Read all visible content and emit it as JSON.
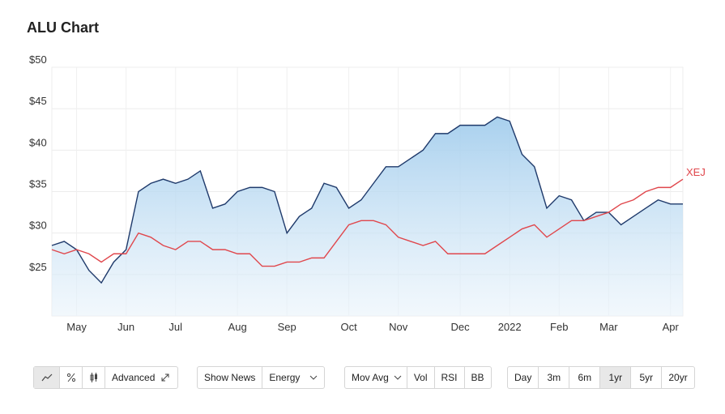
{
  "chart_data": {
    "type": "line",
    "title": "ALU Chart",
    "categories": [
      null,
      null,
      "May",
      null,
      null,
      null,
      "Jun",
      null,
      null,
      null,
      "Jul",
      null,
      null,
      null,
      null,
      "Aug",
      null,
      null,
      null,
      "Sep",
      null,
      null,
      null,
      null,
      "Oct",
      null,
      null,
      null,
      "Nov",
      null,
      null,
      null,
      null,
      "Dec",
      null,
      null,
      null,
      "2022",
      null,
      null,
      null,
      "Feb",
      null,
      null,
      null,
      "Mar",
      null,
      null,
      null,
      null,
      "Apr",
      null
    ],
    "series": [
      {
        "color": "#1f3a6b",
        "area": true,
        "values": [
          28.5,
          29,
          28,
          25.5,
          24,
          26.5,
          28,
          35,
          36,
          36.5,
          36,
          36.5,
          37.5,
          33,
          33.5,
          35,
          35.5,
          35.5,
          35,
          30,
          32,
          33,
          36,
          35.5,
          33,
          34,
          36,
          38,
          38,
          39,
          40,
          42,
          42,
          43,
          43,
          43,
          44,
          43.5,
          39.5,
          38,
          33,
          34.5,
          34,
          31.5,
          32.5,
          32.5,
          31,
          32,
          33,
          34,
          33.5,
          33.5
        ]
      },
      {
        "name": "XEJ",
        "color": "#e0474c",
        "values": [
          28,
          27.5,
          28,
          27.5,
          26.5,
          27.5,
          27.5,
          30,
          29.5,
          28.5,
          28,
          29,
          29,
          28,
          28,
          27.5,
          27.5,
          26,
          26,
          26.5,
          26.5,
          27,
          27,
          29,
          31,
          31.5,
          31.5,
          31,
          29.5,
          29,
          28.5,
          29,
          27.5,
          27.5,
          27.5,
          27.5,
          28.5,
          29.5,
          30.5,
          31,
          29.5,
          30.5,
          31.5,
          31.5,
          32,
          32.5,
          33.5,
          34,
          35,
          35.5,
          35.5,
          36.5
        ]
      }
    ],
    "ylim": [
      20,
      50
    ],
    "yticks": [
      {
        "value": 25,
        "label": "$25"
      },
      {
        "value": 30,
        "label": "$30"
      },
      {
        "value": 35,
        "label": "$35"
      },
      {
        "value": 40,
        "label": "$40"
      },
      {
        "value": 45,
        "label": "$45"
      },
      {
        "value": 50,
        "label": "$50"
      }
    ],
    "grid": true
  },
  "controls": {
    "advanced": "Advanced",
    "news": "Show News",
    "sector": "Energy",
    "indicators": [
      "Mov Avg",
      "Vol",
      "RSI",
      "BB"
    ],
    "ranges": [
      "Day",
      "3m",
      "6m",
      "1yr",
      "5yr",
      "20yr"
    ],
    "active_range": "1yr"
  }
}
